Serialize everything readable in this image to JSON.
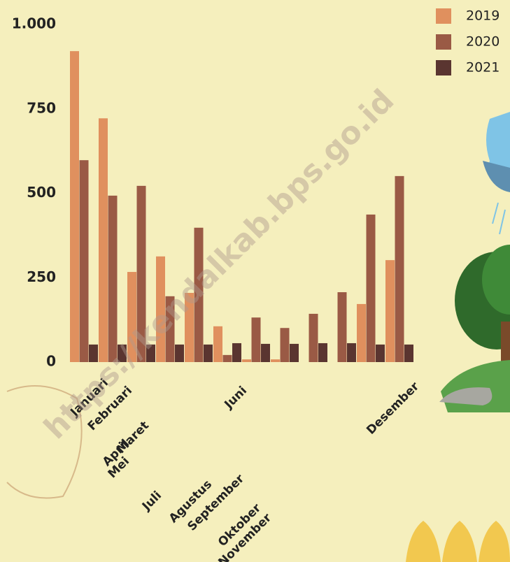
{
  "chart_data": {
    "type": "bar",
    "watermark": "https://kendalkab.bps.go.id",
    "categories": [
      "Januari",
      "Februari",
      "Maret",
      "April",
      "Mei",
      "Juni",
      "Juli",
      "Agustus",
      "September",
      "Oktober",
      "November",
      "Desember"
    ],
    "series": [
      {
        "name": "2019",
        "color": "#e0905e",
        "values": [
          921,
          722,
          267,
          313,
          205,
          106,
          8,
          8,
          0,
          0,
          172,
          302
        ]
      },
      {
        "name": "2020",
        "color": "#9a5a45",
        "values": [
          598,
          493,
          522,
          195,
          398,
          21,
          132,
          101,
          143,
          207,
          437,
          551
        ]
      },
      {
        "name": "2021",
        "color": "#5a3530",
        "values": [
          52,
          52,
          52,
          52,
          52,
          56,
          54,
          54,
          56,
          56,
          52,
          52
        ]
      }
    ],
    "ylim": [
      0,
      1000
    ],
    "yticks": [
      0,
      250,
      500,
      750,
      {
        "value": 1000,
        "label": "1.000"
      }
    ],
    "grid": false,
    "legend": "top-right"
  }
}
